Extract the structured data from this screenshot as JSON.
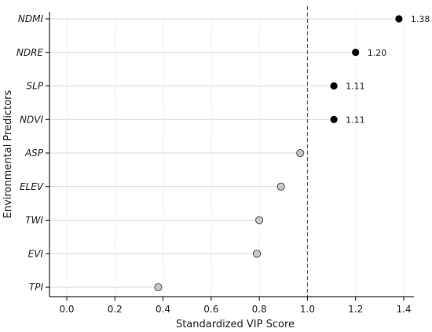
{
  "chart_data": {
    "type": "lollipop",
    "orientation": "horizontal",
    "title": "",
    "xlabel": "Standardized VIP Score",
    "ylabel": "Environmental Predictors",
    "xlim": [
      0.0,
      1.4
    ],
    "xticks": [
      "0.0",
      "0.2",
      "0.4",
      "0.6",
      "0.8",
      "1.0",
      "1.2",
      "1.4"
    ],
    "threshold": 1.0,
    "grid": "vertical dotted",
    "categories": [
      "NDMI",
      "NDRE",
      "SLP",
      "NDVI",
      "ASP",
      "ELEV",
      "TWI",
      "EVI",
      "TPI"
    ],
    "values": [
      1.38,
      1.2,
      1.11,
      1.11,
      0.97,
      0.89,
      0.8,
      0.79,
      0.38
    ],
    "value_labels": [
      "1.38",
      "1.20",
      "1.11",
      "1.11",
      "",
      "",
      "",
      "",
      ""
    ],
    "colors": {
      "important": "#000000",
      "not_important": "#c8c8c8",
      "stem": "#d9d9d9",
      "threshold_line": "#d62728"
    }
  }
}
